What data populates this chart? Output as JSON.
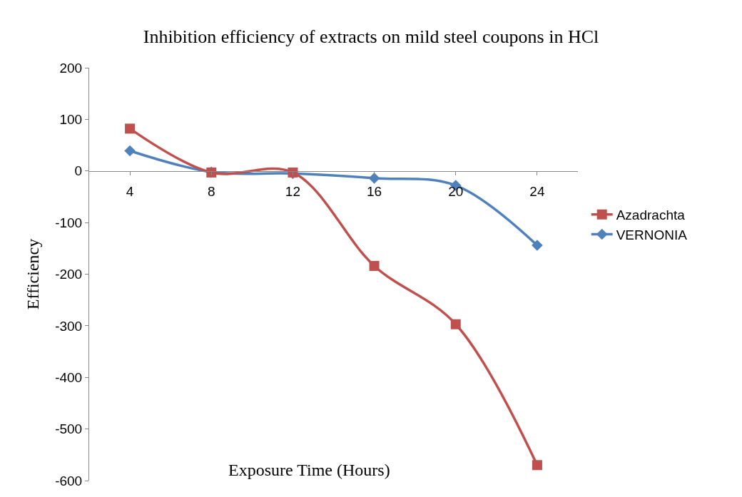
{
  "chart_data": {
    "type": "line",
    "title": "Inhibition efficiency of extracts on mild steel coupons in HCl",
    "xlabel": "Exposure Time (Hours)",
    "ylabel": "Efficiency",
    "categories": [
      "4",
      "8",
      "12",
      "16",
      "20",
      "24"
    ],
    "series": [
      {
        "name": "Azadrachta",
        "color": "#c0504d",
        "marker": "square",
        "values": [
          82,
          -3,
          -3,
          -184,
          -297,
          -570
        ]
      },
      {
        "name": "VERNONIA",
        "color": "#4f81bd",
        "marker": "diamond",
        "values": [
          39,
          -2,
          -5,
          -14,
          -28,
          -144
        ]
      }
    ],
    "ylim": [
      -600,
      200
    ],
    "yticks": [
      -600,
      -500,
      -400,
      -300,
      -200,
      -100,
      0,
      100,
      200
    ],
    "legend": "right"
  }
}
